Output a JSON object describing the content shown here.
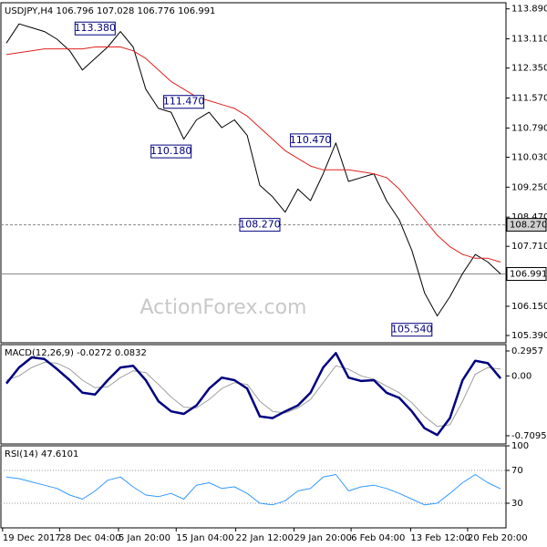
{
  "chart_data": [
    {
      "type": "line",
      "title": "USDJPY,H4 106.796 107.028 106.776 106.991",
      "watermark": "ActionForex.com",
      "series": [
        {
          "color": "#000000",
          "values": [
            113.0,
            113.5,
            113.4,
            113.3,
            113.1,
            112.8,
            112.3,
            112.6,
            112.9,
            113.3,
            112.9,
            111.8,
            111.3,
            111.2,
            110.5,
            111.0,
            111.2,
            110.8,
            111.0,
            110.6,
            109.3,
            109.0,
            108.6,
            109.2,
            108.9,
            109.6,
            110.4,
            109.4,
            109.5,
            109.6,
            108.9,
            108.4,
            107.6,
            106.5,
            105.9,
            106.4,
            107.0,
            107.5,
            107.3,
            106.991
          ]
        },
        {
          "color": "#e02020",
          "values": [
            112.7,
            112.75,
            112.8,
            112.85,
            112.85,
            112.85,
            112.85,
            112.9,
            112.9,
            112.9,
            112.8,
            112.6,
            112.3,
            112.0,
            111.8,
            111.6,
            111.5,
            111.4,
            111.3,
            111.1,
            110.8,
            110.5,
            110.2,
            110.0,
            109.8,
            109.7,
            109.7,
            109.7,
            109.65,
            109.6,
            109.5,
            109.2,
            108.8,
            108.4,
            108.0,
            107.7,
            107.5,
            107.4,
            107.4,
            107.3
          ]
        }
      ],
      "ylim": [
        105.2,
        114.05
      ],
      "yticks": [
        {
          "value": 113.89,
          "label": "113.890"
        },
        {
          "value": 113.11,
          "label": "113.110"
        },
        {
          "value": 112.35,
          "label": "112.350"
        },
        {
          "value": 111.57,
          "label": "111.570"
        },
        {
          "value": 110.79,
          "label": "110.790"
        },
        {
          "value": 110.03,
          "label": "110.030"
        },
        {
          "value": 109.25,
          "label": "109.250"
        },
        {
          "value": 108.47,
          "label": "108.470"
        },
        {
          "value": 107.71,
          "label": "107.710"
        },
        {
          "value": 106.15,
          "label": "106.150"
        },
        {
          "value": 105.39,
          "label": "105.390"
        }
      ],
      "hlines": [
        {
          "value": 108.27,
          "label": "108.270",
          "color": "#d0d0d0"
        },
        {
          "value": 106.991,
          "label": "106.991",
          "color": "#ffffff"
        }
      ],
      "annotations": [
        {
          "x": 7,
          "value": 113.38,
          "label": "113.380"
        },
        {
          "x": 14,
          "value": 111.47,
          "label": "111.470"
        },
        {
          "x": 13,
          "value": 110.18,
          "label": "110.180"
        },
        {
          "x": 24,
          "value": 110.47,
          "label": "110.470"
        },
        {
          "x": 20,
          "value": 108.27,
          "label": "108.270"
        },
        {
          "x": 32,
          "value": 105.54,
          "label": "105.540"
        }
      ]
    },
    {
      "type": "line",
      "title": "MACD(12,26,9) -0.0272 0.0832",
      "series": [
        {
          "color": "#a0a0a0",
          "values": [
            -0.05,
            0.0,
            0.1,
            0.16,
            0.15,
            0.08,
            -0.05,
            -0.14,
            -0.13,
            -0.02,
            0.06,
            0.04,
            -0.1,
            -0.25,
            -0.37,
            -0.38,
            -0.28,
            -0.15,
            -0.08,
            -0.1,
            -0.3,
            -0.42,
            -0.44,
            -0.38,
            -0.28,
            -0.08,
            0.12,
            0.08,
            0.0,
            -0.04,
            -0.12,
            -0.2,
            -0.32,
            -0.48,
            -0.6,
            -0.58,
            -0.3,
            0.02,
            0.1,
            0.08
          ]
        },
        {
          "color": "#000080",
          "values": [
            -0.09,
            0.1,
            0.22,
            0.2,
            0.08,
            -0.05,
            -0.2,
            -0.22,
            -0.05,
            0.1,
            0.12,
            -0.05,
            -0.3,
            -0.42,
            -0.45,
            -0.35,
            -0.15,
            -0.02,
            -0.05,
            -0.15,
            -0.48,
            -0.5,
            -0.42,
            -0.35,
            -0.2,
            0.1,
            0.27,
            -0.02,
            -0.06,
            -0.05,
            -0.2,
            -0.26,
            -0.42,
            -0.62,
            -0.7,
            -0.5,
            -0.05,
            0.18,
            0.15,
            -0.03
          ]
        }
      ],
      "ylim": [
        -0.807,
        0.371
      ],
      "yticks": [
        0.2957,
        {
          "value": 0,
          "label": "0.00"
        },
        -0.7095
      ]
    },
    {
      "type": "line",
      "title": "RSI(14) 47.6101",
      "series": [
        {
          "color": "#3399ff",
          "values": [
            62,
            60,
            56,
            52,
            48,
            40,
            35,
            45,
            58,
            62,
            50,
            40,
            38,
            42,
            35,
            52,
            55,
            48,
            50,
            42,
            30,
            28,
            33,
            45,
            48,
            62,
            65,
            45,
            50,
            52,
            48,
            42,
            35,
            28,
            30,
            42,
            55,
            65,
            55,
            47.6
          ]
        }
      ],
      "ylim": [
        0,
        100
      ],
      "yticks": [
        100,
        70,
        30
      ],
      "grid_levels": [
        70,
        30
      ],
      "xticks": [
        {
          "value": -0.3,
          "label": "19 Dec 2017"
        },
        {
          "value": 4.2,
          "label": "28 Dec 04:00"
        },
        {
          "value": 8.85,
          "label": "5 Jan 20:00"
        },
        {
          "value": 13.4,
          "label": "15 Jan 04:00"
        },
        {
          "value": 18.1,
          "label": "22 Jan 12:00"
        },
        {
          "value": 22.7,
          "label": "29 Jan 20:00"
        },
        {
          "value": 27.2,
          "label": "6 Feb 04:00"
        },
        {
          "value": 31.9,
          "label": "13 Feb 12:00"
        },
        {
          "value": 36.4,
          "label": "20 Feb 20:00"
        }
      ]
    }
  ]
}
